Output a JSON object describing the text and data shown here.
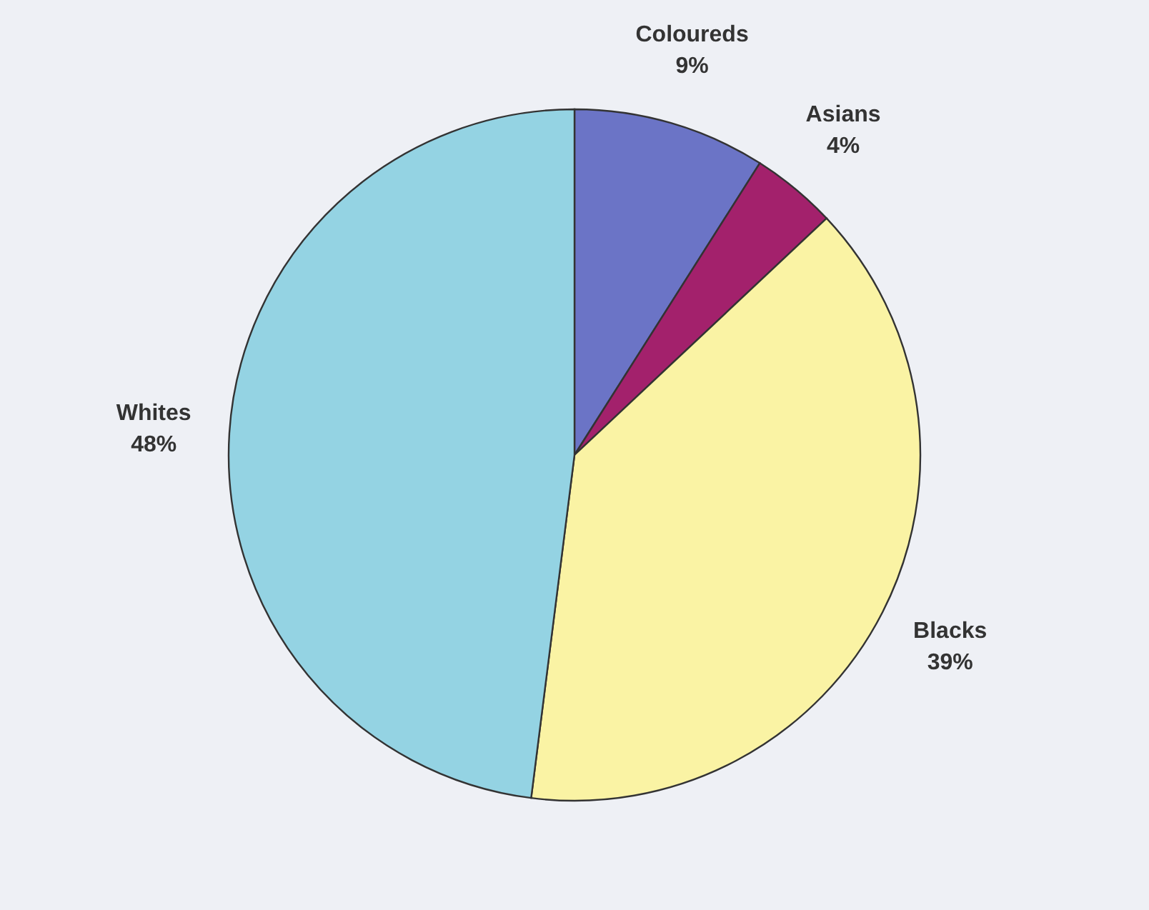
{
  "chart_data": {
    "type": "pie",
    "categories": [
      "Coloureds",
      "Asians",
      "Blacks",
      "Whites"
    ],
    "values": [
      9,
      4,
      39,
      48
    ],
    "value_labels": [
      "9%",
      "4%",
      "39%",
      "48%"
    ],
    "colors": [
      "#6b74c6",
      "#a3216c",
      "#faf3a4",
      "#94d3e3"
    ]
  }
}
